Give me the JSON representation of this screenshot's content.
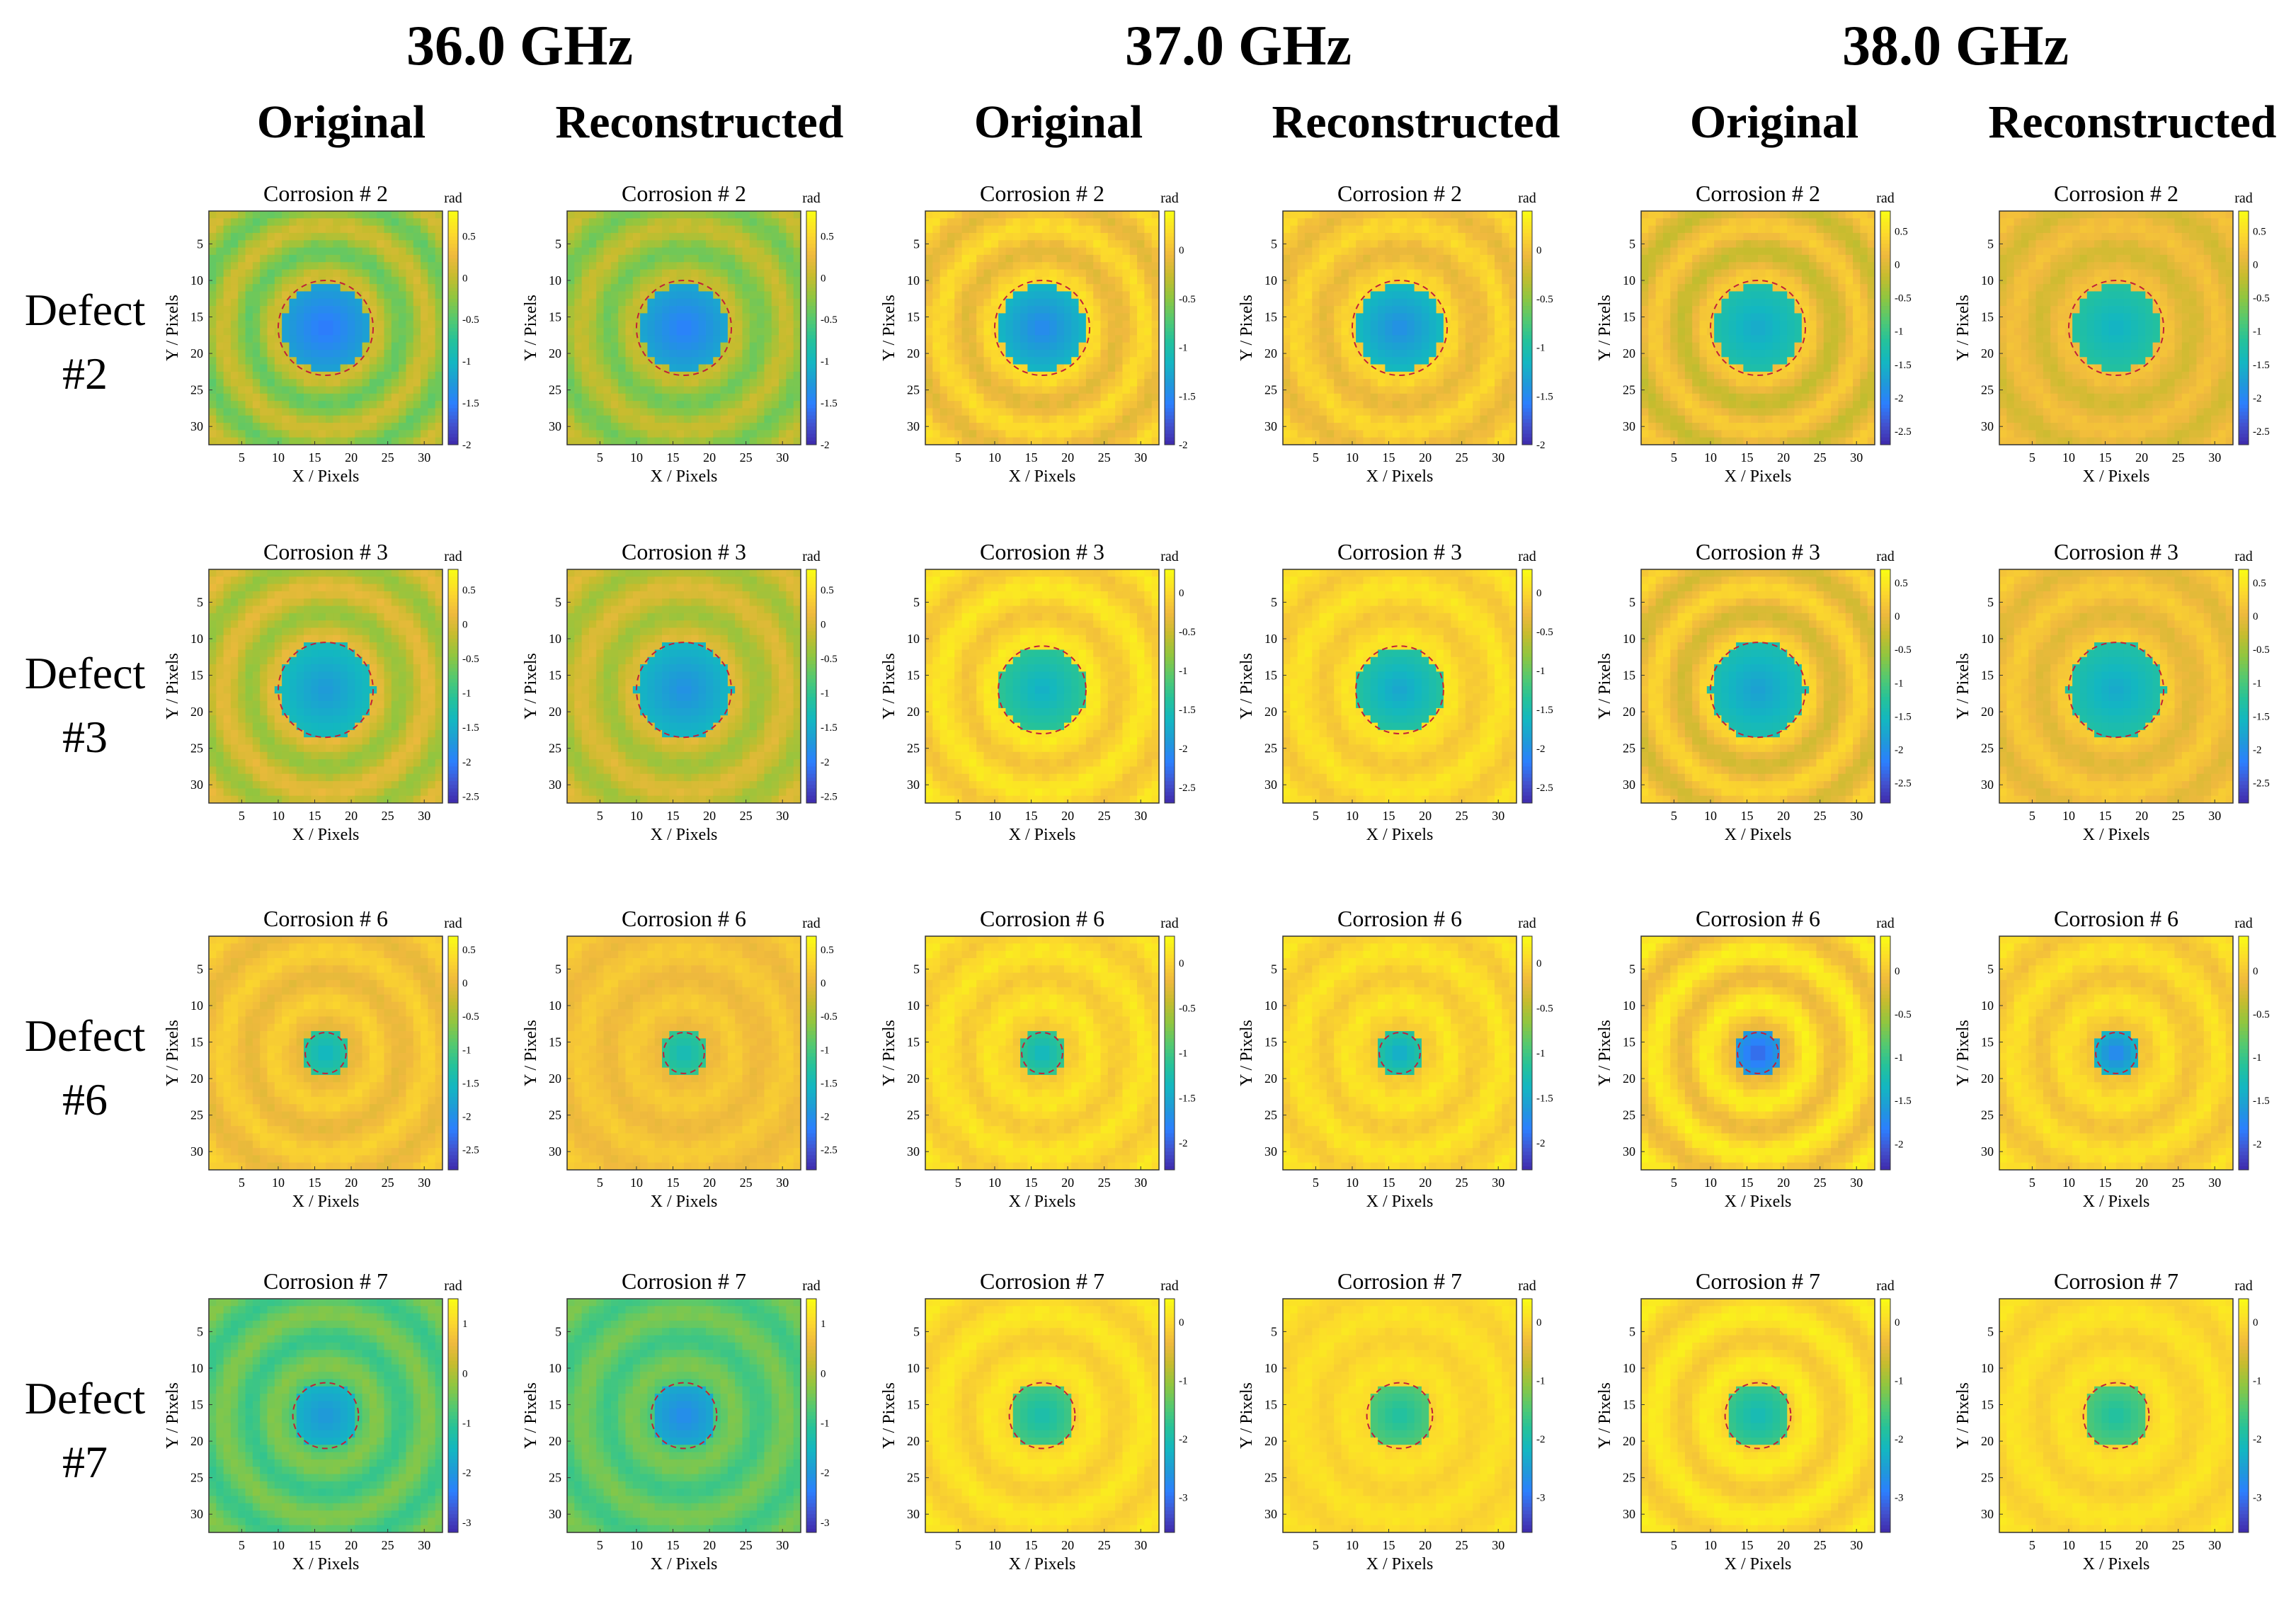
{
  "frequencies": [
    "36.0 GHz",
    "37.0 GHz",
    "38.0 GHz"
  ],
  "column_types": [
    "Original",
    "Reconstructed"
  ],
  "rows": [
    {
      "label_line1": "Defect",
      "label_line2": "#2",
      "title": "Corrosion # 2"
    },
    {
      "label_line1": "Defect",
      "label_line2": "#3",
      "title": "Corrosion # 3"
    },
    {
      "label_line1": "Defect",
      "label_line2": "#6",
      "title": "Corrosion # 6"
    },
    {
      "label_line1": "Defect",
      "label_line2": "#7",
      "title": "Corrosion # 7"
    }
  ],
  "axes": {
    "xlabel": "X / Pixels",
    "ylabel": "Y / Pixels",
    "ticks": [
      5,
      10,
      15,
      20,
      25,
      30
    ],
    "range": [
      1,
      32
    ]
  },
  "colorbar_unit": "rad",
  "colormap": [
    "#3e26a8",
    "#4352ce",
    "#2c7ffe",
    "#1f9ad8",
    "#13b7c1",
    "#25c29a",
    "#55c96f",
    "#8fc640",
    "#c6bc2e",
    "#f0b93e",
    "#fcd92c",
    "#f9fb15"
  ],
  "chart_data": [
    {
      "type": "heatmap",
      "row": "Defect #2",
      "freq": "36.0 GHz",
      "kind": "Original",
      "title": "Corrosion # 2",
      "clim": [
        -2,
        0.8
      ],
      "cbar_ticks": [
        "0.5",
        "0",
        "-0.5",
        "-1",
        "-1.5",
        "-2"
      ],
      "background": -0.15,
      "ring_amp": 0.25,
      "defect_center": [
        16.5,
        16.5
      ],
      "defect_radius": 6,
      "defect_depth": -1.55,
      "outline_radius": 6.5
    },
    {
      "type": "heatmap",
      "row": "Defect #2",
      "freq": "36.0 GHz",
      "kind": "Reconstructed",
      "title": "Corrosion # 2",
      "clim": [
        -2,
        0.8
      ],
      "cbar_ticks": [
        "0.5",
        "0",
        "-0.5",
        "-1",
        "-1.5",
        "-2"
      ],
      "background": -0.15,
      "ring_amp": 0.2,
      "defect_center": [
        16.5,
        16.5
      ],
      "defect_radius": 6,
      "defect_depth": -1.5,
      "outline_radius": 6.5
    },
    {
      "type": "heatmap",
      "row": "Defect #2",
      "freq": "37.0 GHz",
      "kind": "Original",
      "title": "Corrosion # 2",
      "clim": [
        -2,
        0.4
      ],
      "cbar_ticks": [
        "0",
        "-0.5",
        "-1",
        "-1.5",
        "-2"
      ],
      "background": 0.05,
      "ring_amp": 0.15,
      "defect_center": [
        16.5,
        16.5
      ],
      "defect_radius": 6,
      "defect_depth": -1.5,
      "outline_radius": 6.5
    },
    {
      "type": "heatmap",
      "row": "Defect #2",
      "freq": "37.0 GHz",
      "kind": "Reconstructed",
      "title": "Corrosion # 2",
      "clim": [
        -2,
        0.4
      ],
      "cbar_ticks": [
        "0",
        "-0.5",
        "-1",
        "-1.5",
        "-2"
      ],
      "background": 0.05,
      "ring_amp": 0.12,
      "defect_center": [
        16.5,
        16.5
      ],
      "defect_radius": 6,
      "defect_depth": -1.45,
      "outline_radius": 6.5
    },
    {
      "type": "heatmap",
      "row": "Defect #2",
      "freq": "38.0 GHz",
      "kind": "Original",
      "title": "Corrosion # 2",
      "clim": [
        -2.7,
        0.8
      ],
      "cbar_ticks": [
        "0.5",
        "0",
        "-0.5",
        "-1",
        "-1.5",
        "-2",
        "-2.5"
      ],
      "background": 0.1,
      "ring_amp": 0.25,
      "defect_center": [
        16.5,
        16.5
      ],
      "defect_radius": 6,
      "defect_depth": -1.6,
      "outline_radius": 6.5
    },
    {
      "type": "heatmap",
      "row": "Defect #2",
      "freq": "38.0 GHz",
      "kind": "Reconstructed",
      "title": "Corrosion # 2",
      "clim": [
        -2.7,
        0.8
      ],
      "cbar_ticks": [
        "0.5",
        "0",
        "-0.5",
        "-1",
        "-1.5",
        "-2",
        "-2.5"
      ],
      "background": 0.1,
      "ring_amp": 0.15,
      "defect_center": [
        16.5,
        16.5
      ],
      "defect_radius": 6,
      "defect_depth": -1.5,
      "outline_radius": 6.5
    },
    {
      "type": "heatmap",
      "row": "Defect #3",
      "freq": "36.0 GHz",
      "kind": "Original",
      "title": "Corrosion # 3",
      "clim": [
        -2.6,
        0.8
      ],
      "cbar_ticks": [
        "0.5",
        "0",
        "-0.5",
        "-1",
        "-1.5",
        "-2",
        "-2.5"
      ],
      "background": -0.15,
      "ring_amp": 0.25,
      "defect_center": [
        16.5,
        17
      ],
      "defect_radius": 6.5,
      "defect_depth": -1.7,
      "outline_radius": 6.5
    },
    {
      "type": "heatmap",
      "row": "Defect #3",
      "freq": "36.0 GHz",
      "kind": "Reconstructed",
      "title": "Corrosion # 3",
      "clim": [
        -2.6,
        0.8
      ],
      "cbar_ticks": [
        "0.5",
        "0",
        "-0.5",
        "-1",
        "-1.5",
        "-2",
        "-2.5"
      ],
      "background": -0.15,
      "ring_amp": 0.2,
      "defect_center": [
        16.5,
        17
      ],
      "defect_radius": 6.5,
      "defect_depth": -1.8,
      "outline_radius": 6.5
    },
    {
      "type": "heatmap",
      "row": "Defect #3",
      "freq": "37.0 GHz",
      "kind": "Original",
      "title": "Corrosion # 3",
      "clim": [
        -2.7,
        0.3
      ],
      "cbar_ticks": [
        "0",
        "-0.5",
        "-1",
        "-1.5",
        "-2",
        "-2.5"
      ],
      "background": 0.0,
      "ring_amp": 0.15,
      "defect_center": [
        16.5,
        17
      ],
      "defect_radius": 6,
      "defect_depth": -1.7,
      "outline_radius": 6
    },
    {
      "type": "heatmap",
      "row": "Defect #3",
      "freq": "37.0 GHz",
      "kind": "Reconstructed",
      "title": "Corrosion # 3",
      "clim": [
        -2.7,
        0.3
      ],
      "cbar_ticks": [
        "0",
        "-0.5",
        "-1",
        "-1.5",
        "-2",
        "-2.5"
      ],
      "background": 0.0,
      "ring_amp": 0.12,
      "defect_center": [
        16.5,
        17
      ],
      "defect_radius": 6,
      "defect_depth": -1.8,
      "outline_radius": 6
    },
    {
      "type": "heatmap",
      "row": "Defect #3",
      "freq": "38.0 GHz",
      "kind": "Original",
      "title": "Corrosion # 3",
      "clim": [
        -2.8,
        0.7
      ],
      "cbar_ticks": [
        "0.5",
        "0",
        "-0.5",
        "-1",
        "-1.5",
        "-2",
        "-2.5"
      ],
      "background": 0.1,
      "ring_amp": 0.25,
      "defect_center": [
        16.5,
        17
      ],
      "defect_radius": 6.5,
      "defect_depth": -1.8,
      "outline_radius": 6.5
    },
    {
      "type": "heatmap",
      "row": "Defect #3",
      "freq": "38.0 GHz",
      "kind": "Reconstructed",
      "title": "Corrosion # 3",
      "clim": [
        -2.8,
        0.7
      ],
      "cbar_ticks": [
        "0.5",
        "0",
        "-0.5",
        "-1",
        "-1.5",
        "-2",
        "-2.5"
      ],
      "background": 0.1,
      "ring_amp": 0.15,
      "defect_center": [
        16.5,
        17
      ],
      "defect_radius": 6.5,
      "defect_depth": -1.7,
      "outline_radius": 6.5
    },
    {
      "type": "heatmap",
      "row": "Defect #6",
      "freq": "36.0 GHz",
      "kind": "Original",
      "title": "Corrosion # 6",
      "clim": [
        -2.8,
        0.7
      ],
      "cbar_ticks": [
        "0.5",
        "0",
        "-0.5",
        "-1",
        "-1.5",
        "-2",
        "-2.5"
      ],
      "background": 0.15,
      "ring_amp": 0.15,
      "defect_center": [
        16.5,
        16.5
      ],
      "defect_radius": 3,
      "defect_depth": -1.6,
      "outline_radius": 2.8
    },
    {
      "type": "heatmap",
      "row": "Defect #6",
      "freq": "36.0 GHz",
      "kind": "Reconstructed",
      "title": "Corrosion # 6",
      "clim": [
        -2.8,
        0.7
      ],
      "cbar_ticks": [
        "0.5",
        "0",
        "-0.5",
        "-1",
        "-1.5",
        "-2",
        "-2.5"
      ],
      "background": 0.15,
      "ring_amp": 0.1,
      "defect_center": [
        16.5,
        16.5
      ],
      "defect_radius": 3,
      "defect_depth": -1.5,
      "outline_radius": 2.8
    },
    {
      "type": "heatmap",
      "row": "Defect #6",
      "freq": "37.0 GHz",
      "kind": "Original",
      "title": "Corrosion # 6",
      "clim": [
        -2.3,
        0.3
      ],
      "cbar_ticks": [
        "0",
        "-0.5",
        "-1",
        "-1.5",
        "-2"
      ],
      "background": 0.05,
      "ring_amp": 0.1,
      "defect_center": [
        16.5,
        16.5
      ],
      "defect_radius": 3,
      "defect_depth": -1.4,
      "outline_radius": 2.8
    },
    {
      "type": "heatmap",
      "row": "Defect #6",
      "freq": "37.0 GHz",
      "kind": "Reconstructed",
      "title": "Corrosion # 6",
      "clim": [
        -2.3,
        0.3
      ],
      "cbar_ticks": [
        "0",
        "-0.5",
        "-1",
        "-1.5",
        "-2"
      ],
      "background": 0.05,
      "ring_amp": 0.1,
      "defect_center": [
        16.5,
        16.5
      ],
      "defect_radius": 3,
      "defect_depth": -1.5,
      "outline_radius": 2.8
    },
    {
      "type": "heatmap",
      "row": "Defect #6",
      "freq": "38.0 GHz",
      "kind": "Original",
      "title": "Corrosion # 6",
      "clim": [
        -2.3,
        0.4
      ],
      "cbar_ticks": [
        "0",
        "-0.5",
        "-1",
        "-1.5",
        "-2"
      ],
      "background": 0.1,
      "ring_amp": 0.2,
      "defect_center": [
        16.5,
        16.5
      ],
      "defect_radius": 3.5,
      "defect_depth": -2.0,
      "outline_radius": 2.8
    },
    {
      "type": "heatmap",
      "row": "Defect #6",
      "freq": "38.0 GHz",
      "kind": "Reconstructed",
      "title": "Corrosion # 6",
      "clim": [
        -2.3,
        0.4
      ],
      "cbar_ticks": [
        "0",
        "-0.5",
        "-1",
        "-1.5",
        "-2"
      ],
      "background": 0.1,
      "ring_amp": 0.12,
      "defect_center": [
        16.5,
        16.5
      ],
      "defect_radius": 3,
      "defect_depth": -1.8,
      "outline_radius": 2.8
    },
    {
      "type": "heatmap",
      "row": "Defect #7",
      "freq": "36.0 GHz",
      "kind": "Original",
      "title": "Corrosion # 7",
      "clim": [
        -3.2,
        1.5
      ],
      "cbar_ticks": [
        "1",
        "0",
        "-1",
        "-2",
        "-3"
      ],
      "background": -0.6,
      "ring_amp": 0.3,
      "defect_center": [
        16.5,
        16.5
      ],
      "defect_radius": 4.5,
      "defect_depth": -2.0,
      "outline_radius": 4.5
    },
    {
      "type": "heatmap",
      "row": "Defect #7",
      "freq": "36.0 GHz",
      "kind": "Reconstructed",
      "title": "Corrosion # 7",
      "clim": [
        -3.2,
        1.5
      ],
      "cbar_ticks": [
        "1",
        "0",
        "-1",
        "-2",
        "-3"
      ],
      "background": -0.6,
      "ring_amp": 0.25,
      "defect_center": [
        16.5,
        16.5
      ],
      "defect_radius": 4.5,
      "defect_depth": -2.2,
      "outline_radius": 4.5
    },
    {
      "type": "heatmap",
      "row": "Defect #7",
      "freq": "37.0 GHz",
      "kind": "Original",
      "title": "Corrosion # 7",
      "clim": [
        -3.6,
        0.4
      ],
      "cbar_ticks": [
        "0",
        "-1",
        "-2",
        "-3"
      ],
      "background": 0.05,
      "ring_amp": 0.15,
      "defect_center": [
        16.5,
        16.5
      ],
      "defect_radius": 4.5,
      "defect_depth": -2.0,
      "outline_radius": 4.5
    },
    {
      "type": "heatmap",
      "row": "Defect #7",
      "freq": "37.0 GHz",
      "kind": "Reconstructed",
      "title": "Corrosion # 7",
      "clim": [
        -3.6,
        0.4
      ],
      "cbar_ticks": [
        "0",
        "-1",
        "-2",
        "-3"
      ],
      "background": 0.05,
      "ring_amp": 0.1,
      "defect_center": [
        16.5,
        16.5
      ],
      "defect_radius": 4.5,
      "defect_depth": -1.9,
      "outline_radius": 4.5
    },
    {
      "type": "heatmap",
      "row": "Defect #7",
      "freq": "38.0 GHz",
      "kind": "Original",
      "title": "Corrosion # 7",
      "clim": [
        -3.6,
        0.4
      ],
      "cbar_ticks": [
        "0",
        "-1",
        "-2",
        "-3"
      ],
      "background": 0.05,
      "ring_amp": 0.2,
      "defect_center": [
        16.5,
        16.5
      ],
      "defect_radius": 4.5,
      "defect_depth": -2.1,
      "outline_radius": 4.5
    },
    {
      "type": "heatmap",
      "row": "Defect #7",
      "freq": "38.0 GHz",
      "kind": "Reconstructed",
      "title": "Corrosion # 7",
      "clim": [
        -3.6,
        0.4
      ],
      "cbar_ticks": [
        "0",
        "-1",
        "-2",
        "-3"
      ],
      "background": 0.05,
      "ring_amp": 0.12,
      "defect_center": [
        16.5,
        16.5
      ],
      "defect_radius": 4.5,
      "defect_depth": -1.9,
      "outline_radius": 4.5
    }
  ]
}
